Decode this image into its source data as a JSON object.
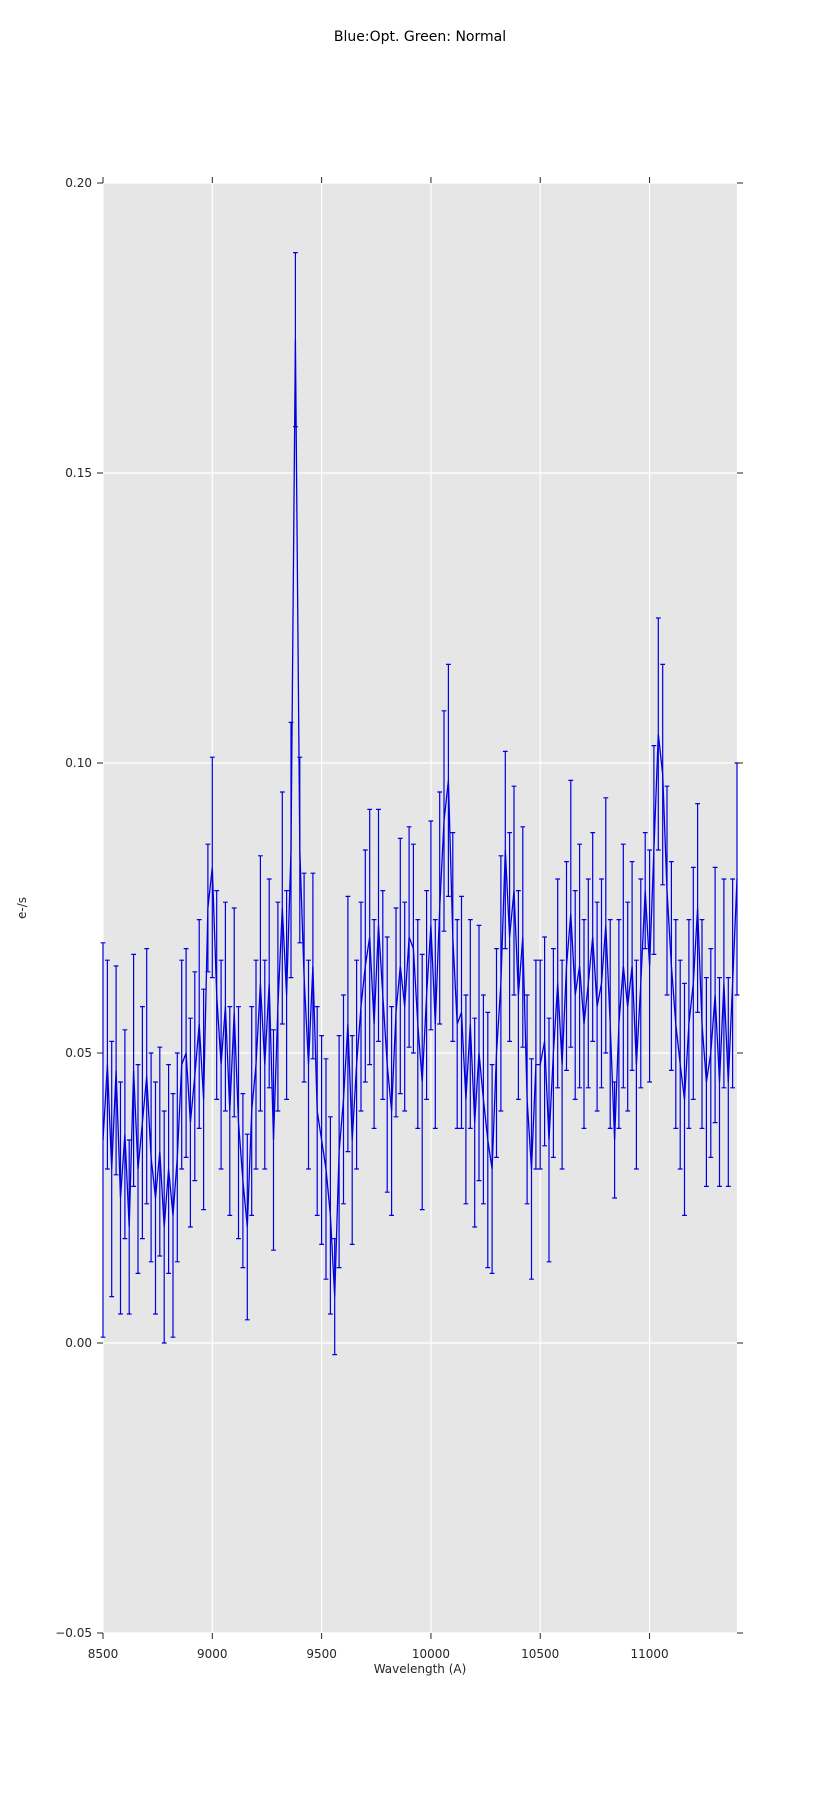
{
  "chart_data": {
    "type": "line",
    "title": "Blue:Opt. Green: Normal",
    "xlabel": "Wavelength (A)",
    "ylabel": "e-/s",
    "xlim": [
      8500,
      11400
    ],
    "ylim": [
      -0.05,
      0.2
    ],
    "xticks": [
      8500,
      9000,
      9500,
      10000,
      10500,
      11000
    ],
    "xtick_labels": [
      "8500",
      "9000",
      "9500",
      "10000",
      "10500",
      "11000"
    ],
    "yticks": [
      -0.05,
      0.0,
      0.05,
      0.1,
      0.15,
      0.2
    ],
    "ytick_labels": [
      "−0.05",
      "0.00",
      "0.05",
      "0.10",
      "0.15",
      "0.20"
    ],
    "grid": true,
    "legend": "none",
    "style": {
      "line_color": "#0000e0",
      "plot_bg": "#e6e6e6",
      "grid_color": "#ffffff",
      "tick_color": "#262626",
      "errorbar_cap_halfwidth": 2.4
    },
    "series": [
      {
        "name": "spectrum",
        "x": [
          8500,
          8520,
          8540,
          8560,
          8580,
          8600,
          8620,
          8640,
          8660,
          8680,
          8700,
          8720,
          8740,
          8760,
          8780,
          8800,
          8820,
          8840,
          8860,
          8880,
          8900,
          8920,
          8940,
          8960,
          8980,
          9000,
          9020,
          9040,
          9060,
          9080,
          9100,
          9120,
          9140,
          9160,
          9180,
          9200,
          9220,
          9240,
          9260,
          9280,
          9300,
          9320,
          9340,
          9360,
          9380,
          9400,
          9420,
          9440,
          9460,
          9480,
          9500,
          9520,
          9540,
          9560,
          9580,
          9600,
          9620,
          9640,
          9660,
          9680,
          9700,
          9720,
          9740,
          9760,
          9780,
          9800,
          9820,
          9840,
          9860,
          9880,
          9900,
          9920,
          9940,
          9960,
          9980,
          10000,
          10020,
          10040,
          10060,
          10080,
          10100,
          10120,
          10140,
          10160,
          10180,
          10200,
          10220,
          10240,
          10260,
          10280,
          10300,
          10320,
          10340,
          10360,
          10380,
          10400,
          10420,
          10440,
          10460,
          10480,
          10500,
          10520,
          10540,
          10560,
          10580,
          10600,
          10620,
          10640,
          10660,
          10680,
          10700,
          10720,
          10740,
          10760,
          10780,
          10800,
          10820,
          10840,
          10860,
          10880,
          10900,
          10920,
          10940,
          10960,
          10980,
          11000,
          11020,
          11040,
          11060,
          11080,
          11100,
          11120,
          11140,
          11160,
          11180,
          11200,
          11220,
          11240,
          11260,
          11280,
          11300,
          11320,
          11340,
          11360,
          11380,
          11400
        ],
        "y": [
          0.035,
          0.048,
          0.03,
          0.047,
          0.025,
          0.036,
          0.02,
          0.047,
          0.03,
          0.038,
          0.046,
          0.032,
          0.025,
          0.033,
          0.02,
          0.03,
          0.022,
          0.032,
          0.048,
          0.05,
          0.038,
          0.046,
          0.055,
          0.042,
          0.075,
          0.082,
          0.06,
          0.048,
          0.058,
          0.04,
          0.057,
          0.038,
          0.028,
          0.02,
          0.04,
          0.048,
          0.062,
          0.048,
          0.062,
          0.035,
          0.058,
          0.075,
          0.06,
          0.085,
          0.173,
          0.085,
          0.063,
          0.048,
          0.065,
          0.04,
          0.035,
          0.03,
          0.022,
          0.008,
          0.033,
          0.042,
          0.055,
          0.035,
          0.048,
          0.058,
          0.065,
          0.07,
          0.055,
          0.072,
          0.06,
          0.048,
          0.04,
          0.057,
          0.065,
          0.058,
          0.07,
          0.068,
          0.055,
          0.045,
          0.06,
          0.072,
          0.055,
          0.075,
          0.09,
          0.097,
          0.07,
          0.055,
          0.057,
          0.042,
          0.055,
          0.038,
          0.05,
          0.042,
          0.035,
          0.03,
          0.05,
          0.062,
          0.085,
          0.07,
          0.078,
          0.06,
          0.07,
          0.042,
          0.03,
          0.048,
          0.048,
          0.052,
          0.035,
          0.05,
          0.062,
          0.048,
          0.065,
          0.074,
          0.06,
          0.065,
          0.055,
          0.062,
          0.07,
          0.058,
          0.062,
          0.072,
          0.055,
          0.035,
          0.055,
          0.065,
          0.058,
          0.065,
          0.048,
          0.062,
          0.078,
          0.065,
          0.085,
          0.105,
          0.098,
          0.078,
          0.065,
          0.055,
          0.048,
          0.042,
          0.055,
          0.062,
          0.075,
          0.055,
          0.045,
          0.05,
          0.06,
          0.045,
          0.062,
          0.045,
          0.062,
          0.08
        ],
        "yerr": [
          0.034,
          0.018,
          0.022,
          0.018,
          0.02,
          0.018,
          0.015,
          0.02,
          0.018,
          0.02,
          0.022,
          0.018,
          0.02,
          0.018,
          0.02,
          0.018,
          0.021,
          0.018,
          0.018,
          0.018,
          0.018,
          0.018,
          0.018,
          0.019,
          0.011,
          0.019,
          0.018,
          0.018,
          0.018,
          0.018,
          0.018,
          0.02,
          0.015,
          0.016,
          0.018,
          0.018,
          0.022,
          0.018,
          0.018,
          0.019,
          0.018,
          0.02,
          0.018,
          0.022,
          0.015,
          0.016,
          0.018,
          0.018,
          0.016,
          0.018,
          0.018,
          0.019,
          0.017,
          0.01,
          0.02,
          0.018,
          0.022,
          0.018,
          0.018,
          0.018,
          0.02,
          0.022,
          0.018,
          0.02,
          0.018,
          0.022,
          0.018,
          0.018,
          0.022,
          0.018,
          0.019,
          0.018,
          0.018,
          0.022,
          0.018,
          0.018,
          0.018,
          0.02,
          0.019,
          0.02,
          0.018,
          0.018,
          0.02,
          0.018,
          0.018,
          0.018,
          0.022,
          0.018,
          0.022,
          0.018,
          0.018,
          0.022,
          0.017,
          0.018,
          0.018,
          0.018,
          0.019,
          0.018,
          0.019,
          0.018,
          0.018,
          0.018,
          0.021,
          0.018,
          0.018,
          0.018,
          0.018,
          0.023,
          0.018,
          0.021,
          0.018,
          0.018,
          0.018,
          0.018,
          0.018,
          0.022,
          0.018,
          0.01,
          0.018,
          0.021,
          0.018,
          0.018,
          0.018,
          0.018,
          0.01,
          0.02,
          0.018,
          0.02,
          0.019,
          0.018,
          0.018,
          0.018,
          0.018,
          0.02,
          0.018,
          0.02,
          0.018,
          0.018,
          0.018,
          0.018,
          0.022,
          0.018,
          0.018,
          0.018,
          0.018,
          0.02
        ]
      }
    ]
  }
}
